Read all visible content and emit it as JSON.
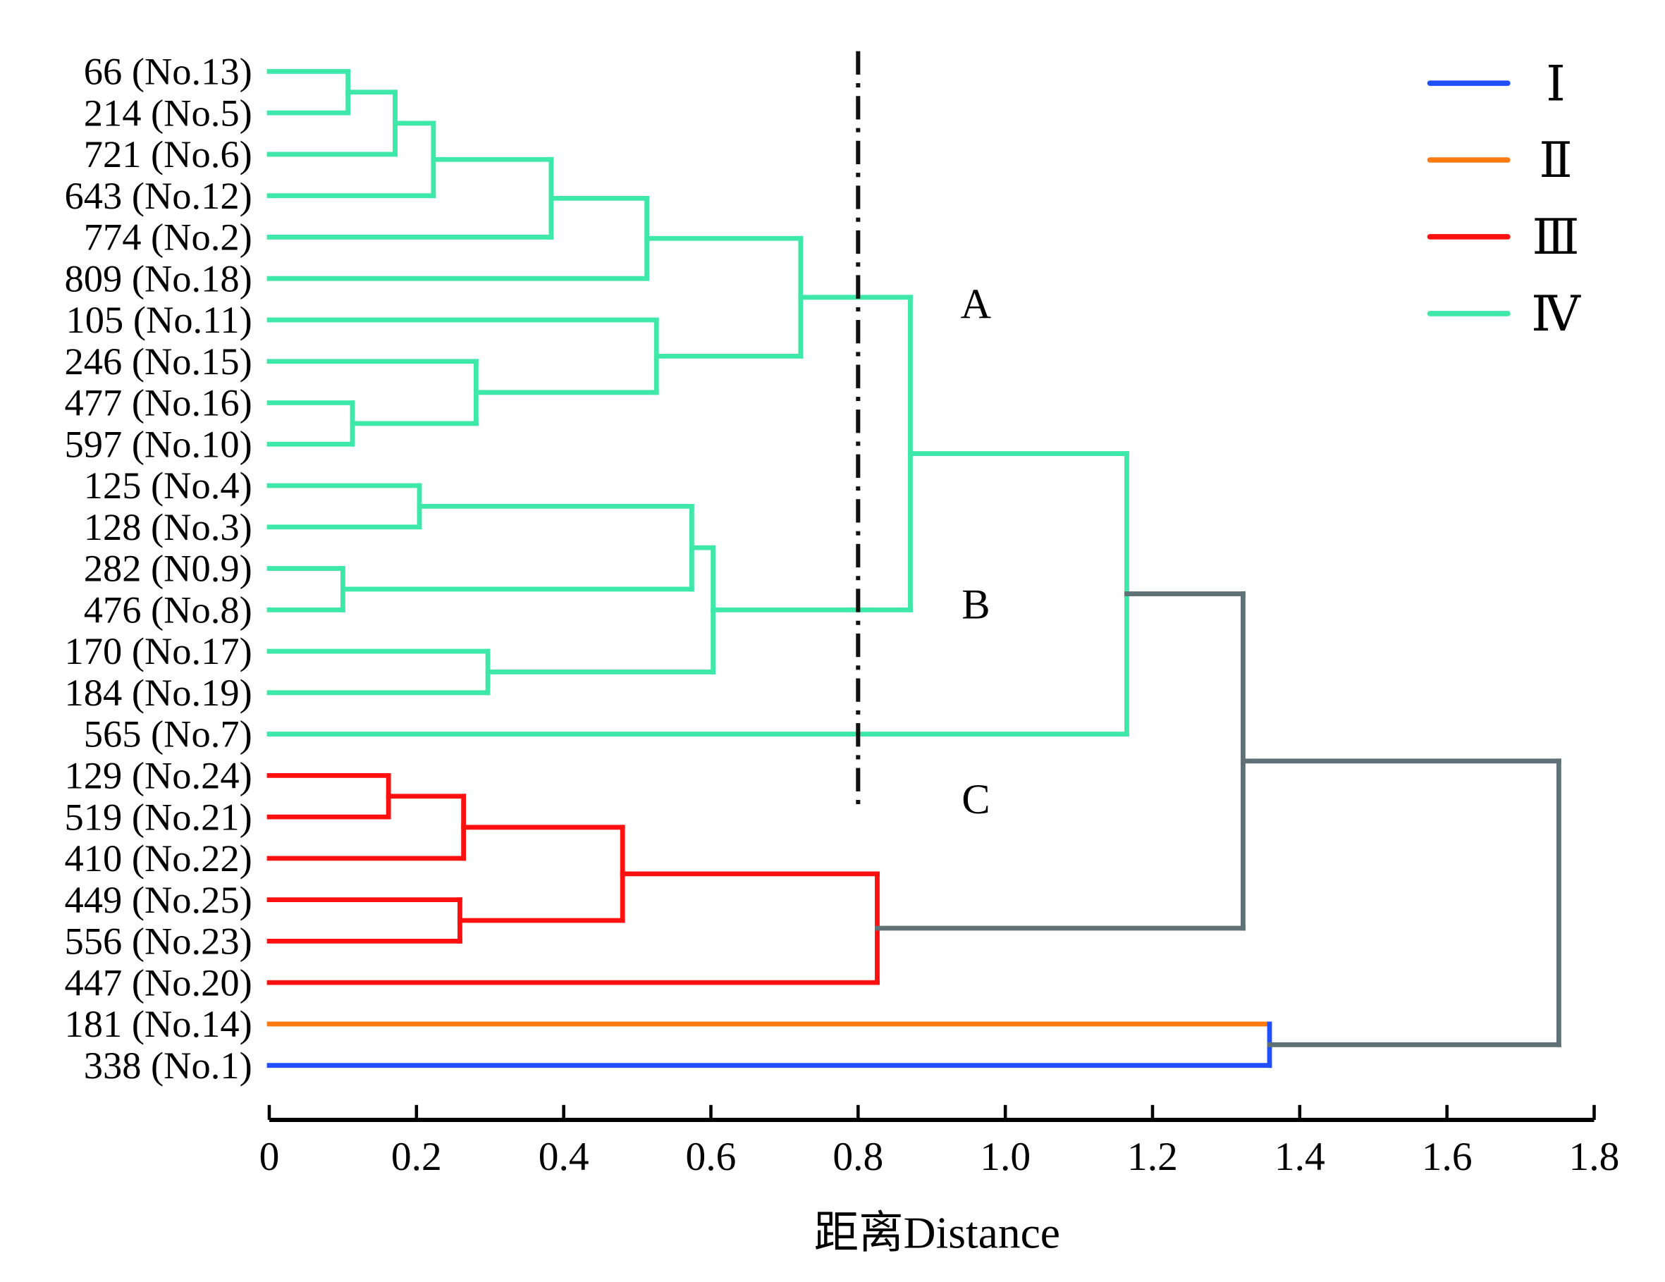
{
  "chart_data": {
    "type": "dendrogram",
    "xlabel": "距离Distance",
    "xlim": [
      0,
      1.8
    ],
    "xticks": [
      "0",
      "0.2",
      "0.4",
      "0.6",
      "0.8",
      "1.0",
      "1.2",
      "1.4",
      "1.6",
      "1.8"
    ],
    "xtick_values": [
      0,
      0.2,
      0.4,
      0.6,
      0.8,
      1.0,
      1.2,
      1.4,
      1.6,
      1.8
    ],
    "cutoff": 0.8,
    "palette": {
      "I": "#1f4fff",
      "II": "#ff7a10",
      "III": "#ff1010",
      "IV": "#3ee8a8",
      "grey": "#5f7077"
    },
    "legend": {
      "placement": "top-right",
      "entries": [
        {
          "label": "Ⅰ",
          "color": "I"
        },
        {
          "label": "Ⅱ",
          "color": "II"
        },
        {
          "label": "Ⅲ",
          "color": "III"
        },
        {
          "label": "Ⅳ",
          "color": "IV"
        }
      ]
    },
    "annotations": [
      {
        "text": "A",
        "x": 0.96,
        "leaf_pos": 5.6
      },
      {
        "text": "B",
        "x": 0.96,
        "leaf_pos": 12.85
      },
      {
        "text": "C",
        "x": 0.96,
        "leaf_pos": 17.55
      }
    ],
    "tree": {
      "h": 1.752,
      "color": "grey",
      "children": [
        {
          "h": 1.323,
          "color": "grey",
          "children": [
            {
              "h": 1.165,
              "color": "IV",
              "children": [
                {
                  "h": 0.871,
                  "children": [
                    {
                      "h": 0.722,
                      "children": [
                        {
                          "h": 0.513,
                          "children": [
                            {
                              "h": 0.383,
                              "children": [
                                {
                                  "h": 0.223,
                                  "children": [
                                    {
                                      "h": 0.171,
                                      "children": [
                                        {
                                          "h": 0.107,
                                          "children": [
                                            {
                                              "label": "66 (No.13)"
                                            },
                                            {
                                              "label": "214 (No.5)"
                                            }
                                          ]
                                        },
                                        {
                                          "label": "721 (No.6)"
                                        }
                                      ]
                                    },
                                    {
                                      "label": "643 (No.12)"
                                    }
                                  ]
                                },
                                {
                                  "label": "774 (No.2)"
                                }
                              ]
                            },
                            {
                              "label": "809 (No.18)"
                            }
                          ]
                        },
                        {
                          "h": 0.526,
                          "children": [
                            {
                              "label": "105 (No.11)"
                            },
                            {
                              "h": 0.281,
                              "children": [
                                {
                                  "label": "246 (No.15)"
                                },
                                {
                                  "h": 0.113,
                                  "children": [
                                    {
                                      "label": "477 (No.16)"
                                    },
                                    {
                                      "label": "597 (No.10)"
                                    }
                                  ]
                                }
                              ]
                            }
                          ]
                        }
                      ]
                    },
                    {
                      "h": 0.603,
                      "children": [
                        {
                          "h": 0.574,
                          "children": [
                            {
                              "h": 0.204,
                              "children": [
                                {
                                  "label": "125 (No.4)"
                                },
                                {
                                  "label": "128 (No.3)"
                                }
                              ]
                            },
                            {
                              "h": 0.1,
                              "children": [
                                {
                                  "label": "282 (N0.9)"
                                },
                                {
                                  "label": "476 (No.8)"
                                }
                              ]
                            }
                          ]
                        },
                        {
                          "h": 0.297,
                          "children": [
                            {
                              "label": "170 (No.17)"
                            },
                            {
                              "label": "184 (No.19)"
                            }
                          ]
                        }
                      ]
                    }
                  ]
                },
                {
                  "label": "565 (No.7)"
                }
              ]
            },
            {
              "h": 0.826,
              "color": "III",
              "children": [
                {
                  "h": 0.48,
                  "children": [
                    {
                      "h": 0.264,
                      "children": [
                        {
                          "h": 0.162,
                          "children": [
                            {
                              "label": "129 (No.24)"
                            },
                            {
                              "label": "519 (No.21)"
                            }
                          ]
                        },
                        {
                          "label": "410 (No.22)"
                        }
                      ]
                    },
                    {
                      "h": 0.259,
                      "children": [
                        {
                          "label": "449 (No.25)"
                        },
                        {
                          "label": "556 (No.23)"
                        }
                      ]
                    }
                  ]
                },
                {
                  "label": "447 (No.20)"
                }
              ]
            }
          ]
        },
        {
          "h": 1.359,
          "color": "I",
          "children": [
            {
              "label": "181 (No.14)",
              "color": "II"
            },
            {
              "label": "338 (No.1)",
              "color": "I"
            }
          ]
        }
      ]
    }
  }
}
